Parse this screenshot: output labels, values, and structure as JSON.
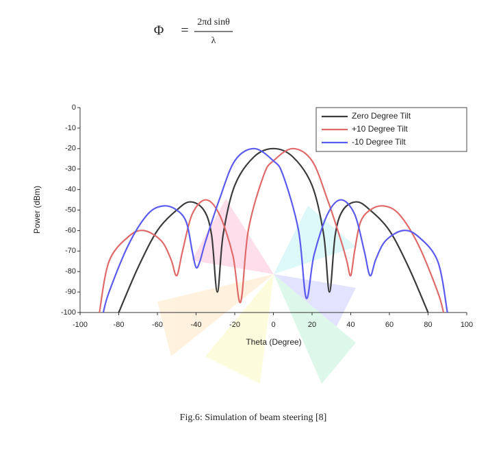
{
  "formula": {
    "lhs": "Φ",
    "eq": "=",
    "numerator": "2πd sinθ",
    "denominator": "λ"
  },
  "chart_data": {
    "type": "line",
    "xlabel": "Theta (Degree)",
    "ylabel": "Power (dBm)",
    "xlim": [
      -100,
      100
    ],
    "xticks": [
      -100,
      -80,
      -60,
      -40,
      -20,
      0,
      20,
      40,
      60,
      80,
      100
    ],
    "ylim": [
      -100,
      0
    ],
    "yticks": [
      -100,
      -90,
      -80,
      -70,
      -60,
      -50,
      -40,
      -30,
      -20,
      -10,
      0
    ],
    "legend": "top-right",
    "series": [
      {
        "name": "Zero Degree Tilt",
        "color": "#3a3a3a",
        "x": [
          -80,
          -70,
          -60,
          -50,
          -43,
          -36,
          -32,
          -29,
          -26,
          -20,
          -10,
          0,
          10,
          20,
          26,
          29,
          32,
          36,
          43,
          50,
          60,
          70,
          80
        ],
        "values": [
          -100,
          -78,
          -60,
          -50,
          -46,
          -50,
          -62,
          -90,
          -62,
          -38,
          -24,
          -20,
          -24,
          -38,
          -62,
          -90,
          -62,
          -50,
          -46,
          -50,
          -60,
          -78,
          -100
        ]
      },
      {
        "name": "+10 Degree Tilt",
        "color": "#e06a6a",
        "x": [
          -90,
          -85,
          -75,
          -67,
          -58,
          -53,
          -50,
          -47,
          -42,
          -35,
          -28,
          -21,
          -17,
          -13,
          -5,
          0,
          10,
          20,
          28,
          35,
          38,
          40,
          42,
          45,
          50,
          57,
          65,
          75,
          85,
          88
        ],
        "values": [
          -100,
          -75,
          -63,
          -60,
          -65,
          -74,
          -82,
          -70,
          -52,
          -45,
          -52,
          -72,
          -95,
          -60,
          -33,
          -26,
          -20,
          -26,
          -45,
          -65,
          -75,
          -82,
          -70,
          -56,
          -50,
          -48,
          -52,
          -67,
          -90,
          -100
        ]
      },
      {
        "name": "-10 Degree Tilt",
        "color": "#5a5af0",
        "x": [
          -88,
          -85,
          -75,
          -65,
          -57,
          -50,
          -45,
          -42,
          -40,
          -38,
          -35,
          -28,
          -20,
          -10,
          0,
          5,
          13,
          17,
          21,
          28,
          35,
          42,
          47,
          50,
          53,
          58,
          67,
          75,
          85,
          90
        ],
        "values": [
          -100,
          -90,
          -67,
          -52,
          -48,
          -50,
          -56,
          -70,
          -78,
          -75,
          -65,
          -45,
          -26,
          -20,
          -26,
          -33,
          -60,
          -93,
          -72,
          -52,
          -45,
          -52,
          -70,
          -82,
          -74,
          -65,
          -60,
          -63,
          -75,
          -100
        ]
      }
    ]
  },
  "caption": "Fig.6: Simulation of beam steering [8]"
}
